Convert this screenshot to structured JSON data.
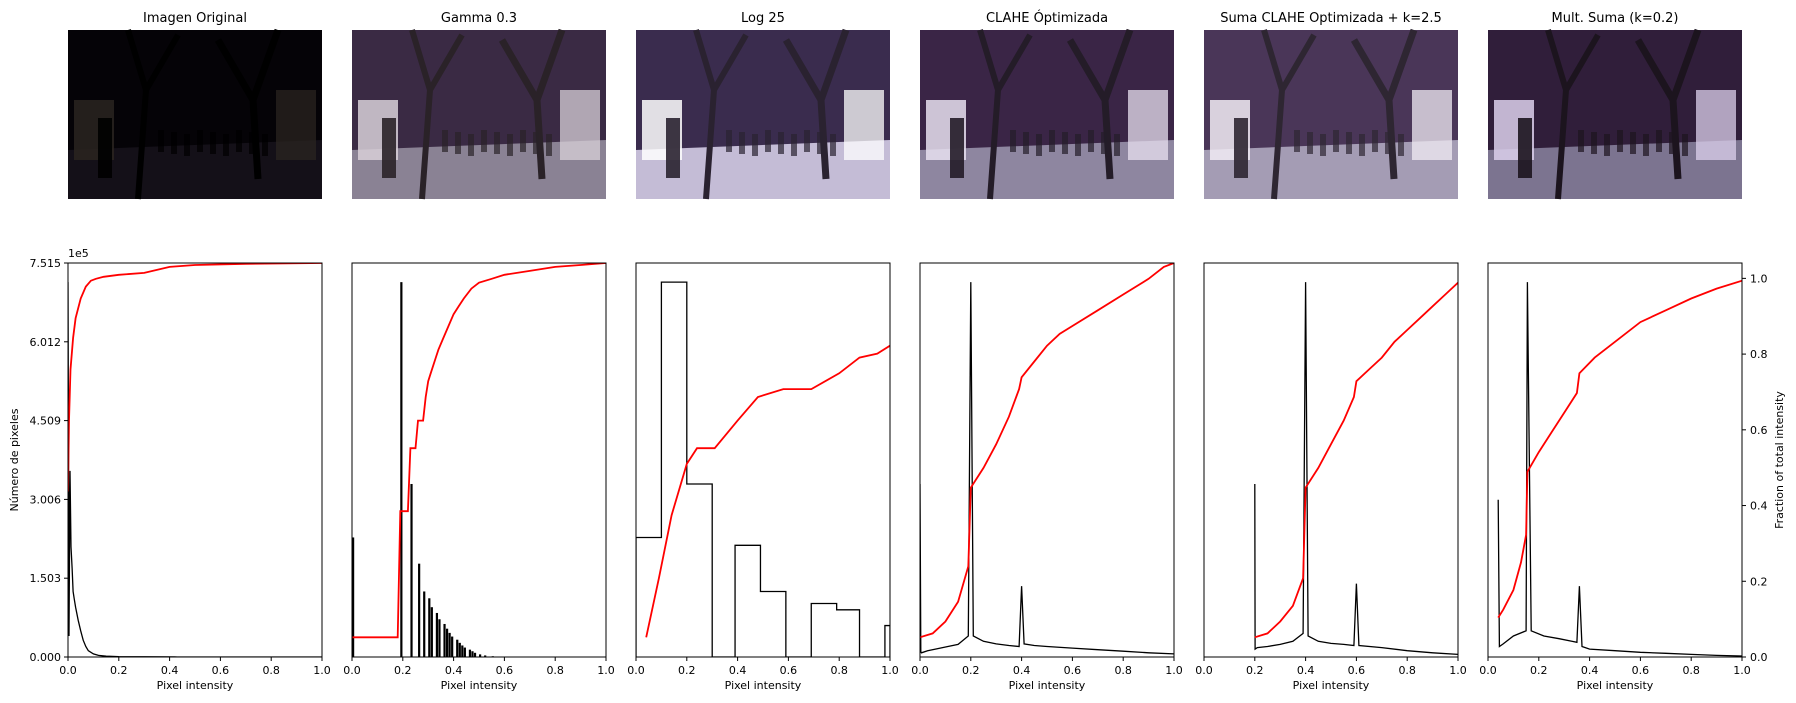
{
  "figure": {
    "titles": [
      "Imagen Original",
      "Gamma 0.3",
      "Log 25",
      "CLAHE Óptimizada",
      "Suma CLAHE Optimizada + k=2.5",
      "Mult. Suma (k=0.2)"
    ],
    "image_variants": [
      {
        "name": "original",
        "sky": "#050307",
        "ground": "#141018",
        "light": "#2a2420",
        "trees": "#000000"
      },
      {
        "name": "gamma",
        "sky": "#3a2a44",
        "ground": "#8a8294",
        "light": "#d8d0d8",
        "trees": "#2a2228"
      },
      {
        "name": "log",
        "sky": "#3a2c4e",
        "ground": "#c4bcd6",
        "light": "#ffffff",
        "trees": "#2a2230"
      },
      {
        "name": "clahe",
        "sky": "#3a2546",
        "ground": "#8e86a0",
        "light": "#e8e0f0",
        "trees": "#241c28"
      },
      {
        "name": "suma",
        "sky": "#4a3658",
        "ground": "#a49cb4",
        "light": "#f2ecf4",
        "trees": "#2e2632"
      },
      {
        "name": "mult",
        "sky": "#301e3a",
        "ground": "#7c7490",
        "light": "#dcd0ec",
        "trees": "#1c141e"
      }
    ]
  },
  "chart_data": [
    {
      "type": "line",
      "title": "Imagen Original",
      "xlabel": "Pixel intensity",
      "ylabel": "Número de pixeles",
      "xlim": [
        0,
        1
      ],
      "ylim": [
        0,
        751500
      ],
      "xticks": [
        "0.0",
        "0.2",
        "0.4",
        "0.6",
        "0.8",
        "1.0"
      ],
      "yticks": [
        0,
        150300,
        300600,
        450900,
        601200,
        751500
      ],
      "ytick_labels": [
        "0.000",
        "1.503",
        "3.006",
        "4.509",
        "6.012",
        "7.515"
      ],
      "y_offset_label": "1e5",
      "histogram": {
        "x": [
          0,
          0.004,
          0.008,
          0.012,
          0.016,
          0.02,
          0.025,
          0.03,
          0.04,
          0.05,
          0.06,
          0.07,
          0.08,
          0.1,
          0.12,
          0.15,
          0.2,
          0.3,
          0.42,
          0.43,
          1.0
        ],
        "y": [
          715000,
          40000,
          355000,
          210000,
          170000,
          125000,
          110000,
          95000,
          70000,
          50000,
          32000,
          20000,
          12000,
          6000,
          3000,
          1500,
          600,
          300,
          200,
          0,
          0
        ]
      },
      "cdf": {
        "x": [
          0.0,
          0.004,
          0.01,
          0.02,
          0.03,
          0.05,
          0.07,
          0.09,
          0.11,
          0.14,
          0.2,
          0.3,
          0.4,
          0.5,
          0.7,
          1.0
        ],
        "y": [
          0.42,
          0.6,
          0.73,
          0.81,
          0.86,
          0.91,
          0.94,
          0.955,
          0.96,
          0.965,
          0.97,
          0.975,
          0.99,
          0.995,
          0.998,
          1.0
        ]
      }
    },
    {
      "type": "line",
      "title": "Gamma 0.3",
      "xlabel": "Pixel intensity",
      "xlim": [
        0,
        1
      ],
      "ylim": [
        0,
        751500
      ],
      "xticks": [
        "0.0",
        "0.2",
        "0.4",
        "0.6",
        "0.8",
        "1.0"
      ],
      "bars": {
        "x": [
          0.0,
          0.19,
          0.23,
          0.26,
          0.28,
          0.3,
          0.31,
          0.33,
          0.34,
          0.36,
          0.37,
          0.38,
          0.39,
          0.41,
          0.42,
          0.43,
          0.44,
          0.46,
          0.47,
          0.48,
          0.5,
          0.52,
          0.55
        ],
        "y": [
          228000,
          715000,
          330000,
          178000,
          125000,
          112000,
          95000,
          84000,
          72000,
          63000,
          54000,
          46000,
          39000,
          33000,
          27000,
          22000,
          18000,
          14000,
          11000,
          8000,
          5000,
          3000,
          1500
        ]
      },
      "cdf": {
        "x": [
          0.0,
          0.18,
          0.19,
          0.22,
          0.23,
          0.25,
          0.26,
          0.28,
          0.29,
          0.3,
          0.31,
          0.33,
          0.34,
          0.36,
          0.38,
          0.4,
          0.42,
          0.44,
          0.47,
          0.5,
          0.55,
          0.6,
          0.7,
          0.8,
          0.9,
          1.0
        ],
        "y": [
          0.05,
          0.05,
          0.37,
          0.37,
          0.53,
          0.53,
          0.6,
          0.6,
          0.66,
          0.7,
          0.72,
          0.76,
          0.78,
          0.81,
          0.84,
          0.87,
          0.89,
          0.91,
          0.935,
          0.95,
          0.96,
          0.97,
          0.98,
          0.99,
          0.995,
          1.0
        ]
      }
    },
    {
      "type": "line",
      "title": "Log 25",
      "xlabel": "Pixel intensity",
      "xlim": [
        0,
        1
      ],
      "ylim": [
        0,
        751500
      ],
      "xticks": [
        "0.0",
        "0.2",
        "0.4",
        "0.6",
        "0.8",
        "1.0"
      ],
      "step_hist": {
        "edges": [
          0.0,
          0.1,
          0.2,
          0.3,
          0.39,
          0.49,
          0.59,
          0.69,
          0.79,
          0.88,
          0.98,
          1.0
        ],
        "y": [
          228000,
          715000,
          330000,
          0,
          213000,
          125000,
          0,
          102000,
          90000,
          0,
          60000
        ]
      },
      "cdf": {
        "x": [
          0.04,
          0.09,
          0.14,
          0.2,
          0.24,
          0.31,
          0.4,
          0.48,
          0.58,
          0.69,
          0.8,
          0.88,
          0.95,
          1.0
        ],
        "y": [
          0.05,
          0.2,
          0.36,
          0.49,
          0.53,
          0.53,
          0.6,
          0.66,
          0.68,
          0.68,
          0.72,
          0.76,
          0.77,
          0.79
        ]
      }
    },
    {
      "type": "line",
      "title": "CLAHE Óptimizada",
      "xlabel": "Pixel intensity",
      "xlim": [
        0,
        1
      ],
      "ylim": [
        0,
        751500
      ],
      "xticks": [
        "0.0",
        "0.2",
        "0.4",
        "0.6",
        "0.8",
        "1.0"
      ],
      "histogram": {
        "x": [
          0.0,
          0.003,
          0.006,
          0.03,
          0.07,
          0.11,
          0.15,
          0.19,
          0.2,
          0.21,
          0.25,
          0.3,
          0.35,
          0.39,
          0.4,
          0.41,
          0.45,
          0.5,
          0.6,
          0.7,
          0.8,
          0.9,
          1.0
        ],
        "y": [
          330000,
          10000,
          8000,
          12000,
          16000,
          20000,
          24000,
          40000,
          715000,
          40000,
          30000,
          25000,
          22000,
          20000,
          135000,
          25000,
          22000,
          20000,
          17000,
          14000,
          11000,
          8000,
          6000
        ]
      },
      "cdf": {
        "x": [
          0.0,
          0.05,
          0.1,
          0.15,
          0.19,
          0.2,
          0.25,
          0.3,
          0.35,
          0.39,
          0.4,
          0.45,
          0.5,
          0.55,
          0.6,
          0.7,
          0.8,
          0.9,
          0.96,
          1.0
        ],
        "y": [
          0.05,
          0.06,
          0.09,
          0.14,
          0.23,
          0.43,
          0.48,
          0.54,
          0.61,
          0.68,
          0.71,
          0.75,
          0.79,
          0.82,
          0.84,
          0.88,
          0.92,
          0.96,
          0.99,
          1.0
        ]
      }
    },
    {
      "type": "line",
      "title": "Suma CLAHE Optimizada + k=2.5",
      "xlabel": "Pixel intensity",
      "xlim": [
        0,
        1
      ],
      "ylim": [
        0,
        751500
      ],
      "xticks": [
        "0.0",
        "0.2",
        "0.4",
        "0.6",
        "0.8",
        "1.0"
      ],
      "histogram": {
        "x": [
          0.2,
          0.201,
          0.21,
          0.25,
          0.3,
          0.35,
          0.39,
          0.4,
          0.41,
          0.45,
          0.5,
          0.55,
          0.59,
          0.6,
          0.61,
          0.7,
          0.8,
          0.9,
          1.0
        ],
        "y": [
          330000,
          15000,
          18000,
          20000,
          24000,
          30000,
          45000,
          715000,
          40000,
          30000,
          26000,
          24000,
          22000,
          140000,
          22000,
          18000,
          12000,
          8000,
          5000
        ]
      },
      "cdf": {
        "x": [
          0.2,
          0.25,
          0.3,
          0.35,
          0.39,
          0.4,
          0.45,
          0.5,
          0.55,
          0.59,
          0.6,
          0.65,
          0.7,
          0.75,
          0.8,
          0.85,
          0.9,
          0.95,
          1.0
        ],
        "y": [
          0.05,
          0.06,
          0.09,
          0.13,
          0.2,
          0.43,
          0.48,
          0.54,
          0.6,
          0.66,
          0.7,
          0.73,
          0.76,
          0.8,
          0.83,
          0.86,
          0.89,
          0.92,
          0.95
        ]
      }
    },
    {
      "type": "line",
      "title": "Mult. Suma (k=0.2)",
      "xlabel": "Pixel intensity",
      "xlim": [
        0,
        1
      ],
      "ylim": [
        0,
        751500
      ],
      "xticks": [
        "0.0",
        "0.2",
        "0.4",
        "0.6",
        "0.8",
        "1.0"
      ],
      "right_ylabel": "Fraction of total intensity",
      "right_ylim": [
        0,
        1
      ],
      "right_yticks": [
        "0.0",
        "0.2",
        "0.4",
        "0.6",
        "0.8",
        "1.0"
      ],
      "histogram": {
        "x": [
          0.04,
          0.045,
          0.06,
          0.1,
          0.15,
          0.155,
          0.17,
          0.22,
          0.28,
          0.33,
          0.35,
          0.36,
          0.37,
          0.4,
          0.5,
          0.6,
          0.7,
          0.8,
          0.9,
          1.0
        ],
        "y": [
          300000,
          20000,
          25000,
          40000,
          50000,
          715000,
          50000,
          40000,
          35000,
          30000,
          28000,
          135000,
          20000,
          15000,
          12000,
          9000,
          7000,
          5000,
          3000,
          2000
        ]
      },
      "cdf": {
        "x": [
          0.04,
          0.06,
          0.1,
          0.13,
          0.15,
          0.155,
          0.2,
          0.25,
          0.3,
          0.35,
          0.36,
          0.42,
          0.5,
          0.6,
          0.7,
          0.8,
          0.9,
          1.0
        ],
        "y": [
          0.1,
          0.12,
          0.17,
          0.24,
          0.31,
          0.47,
          0.52,
          0.57,
          0.62,
          0.67,
          0.72,
          0.76,
          0.8,
          0.85,
          0.88,
          0.91,
          0.935,
          0.955
        ]
      }
    }
  ]
}
